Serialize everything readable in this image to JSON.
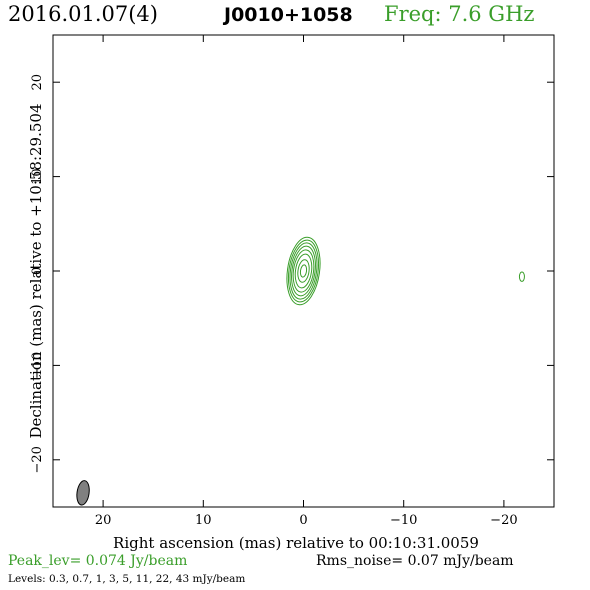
{
  "header": {
    "date": "2016.01.07(4)",
    "source": "J0010+1058",
    "freq": "Freq: 7.6 GHz"
  },
  "chart_data": {
    "type": "contour",
    "title": "J0010+1058",
    "xlabel": "Right ascension (mas) relative to 00:10:31.0059",
    "ylabel": "Declination (mas) relative to +10:58:29.504",
    "xlim": [
      25,
      -25
    ],
    "ylim": [
      -25,
      25
    ],
    "xticks": [
      20,
      10,
      0,
      -10,
      -20
    ],
    "xtick_labels": [
      "20",
      "10",
      "0",
      "−10",
      "−20"
    ],
    "yticks": [
      20,
      10,
      0,
      -10,
      -20
    ],
    "ytick_labels": [
      "20",
      "10",
      "0",
      "−10",
      "−20"
    ],
    "contour_color": "#3a9e2a",
    "main_component": {
      "center": [
        0,
        0
      ],
      "contours": [
        {
          "rx": 1.6,
          "ry": 3.6
        },
        {
          "rx": 1.45,
          "ry": 3.3
        },
        {
          "rx": 1.3,
          "ry": 3.0
        },
        {
          "rx": 1.15,
          "ry": 2.65
        },
        {
          "rx": 1.0,
          "ry": 2.25
        },
        {
          "rx": 0.8,
          "ry": 1.8
        },
        {
          "rx": 0.55,
          "ry": 1.2
        },
        {
          "rx": 0.3,
          "ry": 0.65
        }
      ]
    },
    "secondary_component": {
      "center": [
        -21.8,
        -0.6
      ],
      "rx": 0.25,
      "ry": 0.5
    },
    "beam": {
      "center": [
        22.0,
        -23.5
      ],
      "rx": 0.6,
      "ry": 1.3,
      "color": "#808080"
    },
    "peak_level": "Peak_lev=  0.074 Jy/beam",
    "rms_noise": "Rms_noise= 0.07 mJy/beam",
    "levels": "Levels: 0.3, 0.7,   1,   3,   5,  11,  22,  43 mJy/beam"
  }
}
